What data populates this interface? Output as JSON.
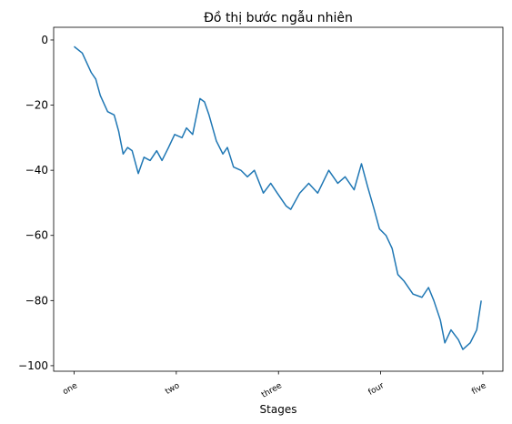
{
  "chart_data": {
    "type": "line",
    "title": "Đồ thị bước ngẫu nhiên",
    "xlabel": "Stages",
    "x": [
      0,
      20,
      42,
      53,
      64,
      82,
      98,
      109,
      120,
      131,
      142,
      157,
      171,
      186,
      202,
      215,
      231,
      246,
      264,
      275,
      290,
      308,
      319,
      330,
      348,
      364,
      375,
      390,
      408,
      424,
      441,
      463,
      481,
      497,
      519,
      530,
      552,
      574,
      596,
      623,
      645,
      663,
      685,
      703,
      718,
      734,
      747,
      763,
      778,
      792,
      807,
      829,
      851,
      867,
      880,
      896,
      907,
      922,
      940,
      951,
      969,
      985,
      996
    ],
    "series": [
      {
        "color": "#1f77b4",
        "values": [
          -2,
          -4,
          -10,
          -12,
          -17,
          -22,
          -23,
          -28,
          -35,
          -33,
          -34,
          -41,
          -36,
          -37,
          -34,
          -37,
          -33,
          -29,
          -30,
          -27,
          -29,
          -18,
          -19,
          -23,
          -31,
          -35,
          -33,
          -39,
          -40,
          -42,
          -40,
          -47,
          -44,
          -47,
          -51,
          -52,
          -47,
          -44,
          -47,
          -40,
          -44,
          -42,
          -46,
          -38,
          -45,
          -52,
          -58,
          -60,
          -64,
          -72,
          -74,
          -78,
          -79,
          -76,
          -80,
          -86,
          -93,
          -89,
          -92,
          -95,
          -93,
          -89,
          -80
        ]
      }
    ],
    "xlim": [
      -50,
      1049
    ],
    "xticks": [
      {
        "value": 0,
        "label": "one"
      },
      {
        "value": 250,
        "label": "two"
      },
      {
        "value": 500,
        "label": "three"
      },
      {
        "value": 750,
        "label": "four"
      },
      {
        "value": 1000,
        "label": "five"
      }
    ],
    "ylim": [
      -101.7,
      3.9
    ],
    "yticks": [
      0,
      {
        "value": -20,
        "label": "−20"
      },
      {
        "value": -40,
        "label": "−40"
      },
      {
        "value": -60,
        "label": "−60"
      },
      {
        "value": -80,
        "label": "−80"
      },
      {
        "value": -100,
        "label": "−100"
      }
    ]
  }
}
